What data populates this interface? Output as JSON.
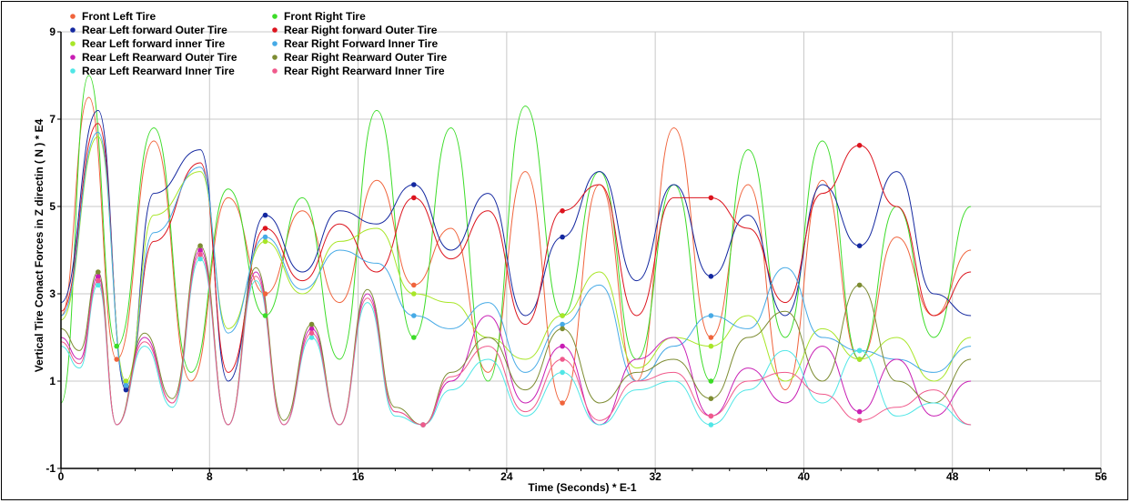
{
  "chart_data": {
    "type": "line",
    "xlabel": "Time (Seconds) * E-1",
    "ylabel": "Vertical Tire Conact Forces in Z directin ( N ) * E4",
    "xlim": [
      0,
      56
    ],
    "ylim": [
      -1,
      9
    ],
    "x_ticks": [
      "0",
      "8",
      "16",
      "24",
      "32",
      "40",
      "48",
      "56"
    ],
    "y_ticks": [
      "-1",
      "1",
      "3",
      "5",
      "7",
      "9"
    ],
    "grid": true,
    "legend_placement": "top-left",
    "series": [
      {
        "name": "Front Left Tire",
        "color": "#f0643c",
        "x": [
          0,
          1.5,
          3,
          5,
          7,
          9,
          11,
          13,
          15,
          17,
          19,
          21,
          23,
          25,
          27,
          29,
          31,
          33,
          35,
          37,
          39,
          41,
          43,
          45,
          47,
          49
        ],
        "values": [
          2.5,
          7.5,
          1.5,
          6.5,
          1.0,
          5.2,
          3.0,
          4.9,
          2.8,
          5.6,
          3.2,
          4.5,
          1.2,
          5.8,
          0.5,
          5.5,
          1.0,
          6.8,
          2.0,
          5.5,
          0.8,
          5.6,
          1.5,
          4.3,
          2.5,
          4.0
        ]
      },
      {
        "name": "Front Right Tire",
        "color": "#3cdc28",
        "x": [
          0,
          1.5,
          3,
          5,
          7,
          9,
          11,
          13,
          15,
          17,
          19,
          21,
          23,
          25,
          27,
          29,
          31,
          33,
          35,
          37,
          39,
          41,
          43,
          45,
          47,
          49
        ],
        "values": [
          0.5,
          8.0,
          1.8,
          6.8,
          1.2,
          5.4,
          2.5,
          5.2,
          1.5,
          7.2,
          2.0,
          6.8,
          1.0,
          7.3,
          2.5,
          5.8,
          1.5,
          5.5,
          1.0,
          6.3,
          2.0,
          6.5,
          1.5,
          5.0,
          2.0,
          5.0
        ]
      },
      {
        "name": "Rear Left forward Outer Tire",
        "color": "#1428a0",
        "x": [
          0,
          2,
          3.5,
          5,
          7.5,
          9,
          11,
          13,
          15,
          17,
          19,
          21,
          23,
          25,
          27,
          29,
          31,
          33,
          35,
          37,
          39,
          41,
          43,
          45,
          47,
          49
        ],
        "values": [
          2.8,
          7.2,
          0.8,
          5.3,
          6.3,
          1.0,
          4.8,
          3.5,
          4.9,
          4.6,
          5.5,
          4.0,
          5.3,
          2.5,
          4.3,
          5.8,
          3.3,
          5.5,
          3.4,
          4.8,
          2.5,
          5.5,
          4.1,
          5.8,
          3.0,
          2.5
        ]
      },
      {
        "name": "Rear Right forward Outer Tire",
        "color": "#dc141e",
        "x": [
          0,
          2,
          3.5,
          5,
          7.5,
          9,
          11,
          13,
          15,
          17,
          19,
          21,
          23,
          25,
          27,
          29,
          31,
          33,
          35,
          37,
          39,
          41,
          43,
          45,
          47,
          49
        ],
        "values": [
          2.6,
          6.9,
          0.9,
          4.2,
          6.0,
          1.2,
          4.5,
          3.3,
          4.6,
          3.5,
          5.2,
          3.8,
          4.9,
          2.3,
          4.9,
          5.5,
          2.5,
          5.2,
          5.2,
          4.5,
          2.8,
          5.3,
          6.4,
          5.0,
          2.5,
          3.5
        ]
      },
      {
        "name": "Rear Left forward inner Tire",
        "color": "#a8e628",
        "x": [
          0,
          2,
          3.5,
          5,
          7.5,
          9,
          11,
          13,
          15,
          17,
          19,
          21,
          23,
          25,
          27,
          29,
          31,
          33,
          35,
          37,
          39,
          41,
          43,
          45,
          47,
          49
        ],
        "values": [
          2.4,
          6.6,
          1.0,
          4.8,
          5.8,
          2.2,
          4.2,
          3.0,
          4.2,
          4.5,
          3.0,
          2.8,
          2.0,
          1.5,
          2.5,
          3.5,
          1.3,
          2.0,
          1.8,
          2.5,
          1.0,
          2.2,
          1.5,
          2.0,
          1.0,
          2.0
        ]
      },
      {
        "name": "Rear Right Forward Inner Tire",
        "color": "#46aae6",
        "x": [
          0,
          2,
          3.5,
          5,
          7.5,
          9,
          11,
          13,
          15,
          17,
          19,
          21,
          23,
          25,
          27,
          29,
          31,
          33,
          35,
          37,
          39,
          41,
          43,
          45,
          47,
          49
        ],
        "values": [
          2.5,
          6.7,
          0.9,
          4.4,
          5.9,
          2.1,
          4.3,
          3.1,
          4.0,
          3.7,
          2.5,
          2.2,
          2.8,
          1.2,
          2.3,
          3.2,
          1.0,
          1.8,
          2.5,
          2.2,
          3.6,
          2.0,
          1.7,
          1.5,
          1.2,
          1.8
        ]
      },
      {
        "name": "Rear Left Rearward Outer Tire",
        "color": "#c81eb4",
        "x": [
          0,
          1,
          2,
          3,
          4.5,
          6,
          7.5,
          9,
          10.5,
          12,
          13.5,
          15,
          16.5,
          18,
          19.5,
          21,
          23,
          25,
          27,
          29,
          31,
          33,
          35,
          37,
          39,
          41,
          43,
          45,
          47,
          49
        ],
        "values": [
          2.0,
          1.5,
          3.4,
          0.0,
          2.0,
          0.5,
          4.0,
          0.0,
          3.5,
          0.0,
          2.2,
          0.0,
          3.0,
          0.3,
          0.0,
          1.0,
          2.5,
          0.5,
          1.8,
          0.0,
          1.5,
          2.0,
          0.2,
          1.3,
          0.5,
          1.8,
          0.3,
          1.5,
          0.2,
          1.0
        ]
      },
      {
        "name": "Rear Right Rearward Outer Tire",
        "color": "#7d8c32",
        "x": [
          0,
          1,
          2,
          3,
          4.5,
          6,
          7.5,
          9,
          10.5,
          12,
          13.5,
          15,
          16.5,
          18,
          19.5,
          21,
          23,
          25,
          27,
          29,
          31,
          33,
          35,
          37,
          39,
          41,
          43,
          45,
          47,
          49
        ],
        "values": [
          2.2,
          1.7,
          3.5,
          0.0,
          2.1,
          0.6,
          4.1,
          0.0,
          3.6,
          0.1,
          2.3,
          0.0,
          3.1,
          0.4,
          0.0,
          1.2,
          2.0,
          0.8,
          2.2,
          0.5,
          1.2,
          1.5,
          0.6,
          2.0,
          2.6,
          1.0,
          3.2,
          1.0,
          0.5,
          1.5
        ]
      },
      {
        "name": "Rear Left Rearward Inner Tire",
        "color": "#50e6e6",
        "x": [
          0,
          1,
          2,
          3,
          4.5,
          6,
          7.5,
          9,
          10.5,
          12,
          13.5,
          15,
          16.5,
          18,
          19.5,
          21,
          23,
          25,
          27,
          29,
          31,
          33,
          35,
          37,
          39,
          41,
          43,
          45,
          47,
          49
        ],
        "values": [
          1.8,
          1.3,
          3.2,
          0.0,
          1.8,
          0.4,
          3.8,
          0.0,
          3.3,
          0.0,
          2.0,
          0.0,
          2.8,
          0.2,
          0.0,
          0.8,
          1.5,
          0.2,
          1.2,
          0.0,
          0.8,
          1.0,
          0.0,
          0.8,
          1.7,
          0.5,
          1.7,
          0.2,
          0.5,
          0.0
        ]
      },
      {
        "name": "Rear Right Rearward Inner Tire",
        "color": "#f05a8c",
        "x": [
          0,
          1,
          2,
          3,
          4.5,
          6,
          7.5,
          9,
          10.5,
          12,
          13.5,
          15,
          16.5,
          18,
          19.5,
          21,
          23,
          25,
          27,
          29,
          31,
          33,
          35,
          37,
          39,
          41,
          43,
          45,
          47,
          49
        ],
        "values": [
          1.9,
          1.4,
          3.3,
          0.0,
          1.9,
          0.5,
          3.9,
          0.0,
          3.4,
          0.0,
          2.1,
          0.0,
          2.9,
          0.3,
          0.0,
          1.1,
          1.8,
          0.3,
          1.5,
          0.1,
          1.0,
          1.2,
          0.2,
          1.0,
          1.2,
          0.7,
          0.1,
          0.4,
          0.8,
          0.0
        ]
      }
    ]
  }
}
